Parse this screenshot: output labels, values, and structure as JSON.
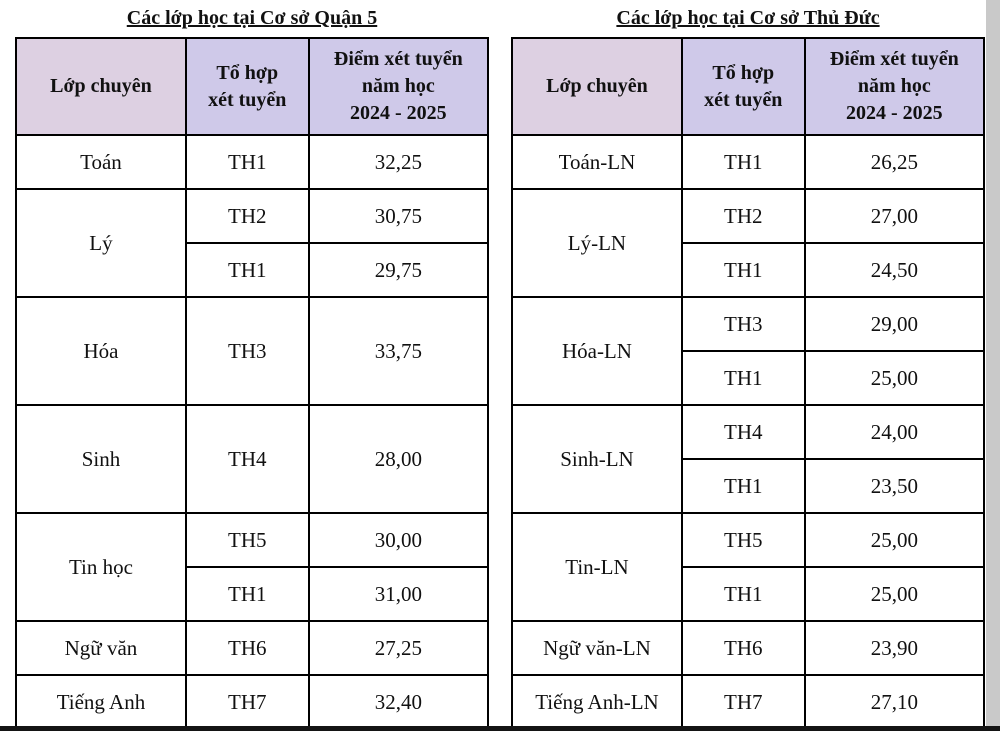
{
  "page": {
    "background": "#ffffff",
    "bottom_edge_color": "#141414",
    "right_strip_color": "#c9c9c9"
  },
  "colors": {
    "header_bg": "#cfc9e9",
    "header_bg_first": "#ddd0e2",
    "border": "#000000"
  },
  "tables": [
    {
      "title": "Các lớp học tại Cơ sở Quận 5",
      "headers": [
        "Lớp chuyên",
        "Tổ hợp\nxét tuyển",
        "Điểm xét tuyển\nnăm học\n2024 - 2025"
      ],
      "groups": [
        {
          "subject": "Toán",
          "rows": [
            {
              "combo": "TH1",
              "score": "32,25"
            }
          ]
        },
        {
          "subject": "Lý",
          "rows": [
            {
              "combo": "TH2",
              "score": "30,75"
            },
            {
              "combo": "TH1",
              "score": "29,75"
            }
          ]
        },
        {
          "subject": "Hóa",
          "rows": [
            {
              "combo": "TH3",
              "score": "33,75",
              "tall": true
            }
          ]
        },
        {
          "subject": "Sinh",
          "rows": [
            {
              "combo": "TH4",
              "score": "28,00",
              "tall": true
            }
          ]
        },
        {
          "subject": "Tin học",
          "rows": [
            {
              "combo": "TH5",
              "score": "30,00"
            },
            {
              "combo": "TH1",
              "score": "31,00"
            }
          ]
        },
        {
          "subject": "Ngữ văn",
          "rows": [
            {
              "combo": "TH6",
              "score": "27,25"
            }
          ]
        },
        {
          "subject": "Tiếng Anh",
          "rows": [
            {
              "combo": "TH7",
              "score": "32,40"
            }
          ]
        }
      ]
    },
    {
      "title": "Các lớp học tại Cơ sở Thủ Đức",
      "headers": [
        "Lớp chuyên",
        "Tổ hợp\nxét tuyển",
        "Điểm xét tuyển\nnăm học\n2024 - 2025"
      ],
      "groups": [
        {
          "subject": "Toán-LN",
          "rows": [
            {
              "combo": "TH1",
              "score": "26,25"
            }
          ]
        },
        {
          "subject": "Lý-LN",
          "rows": [
            {
              "combo": "TH2",
              "score": "27,00"
            },
            {
              "combo": "TH1",
              "score": "24,50"
            }
          ]
        },
        {
          "subject": "Hóa-LN",
          "rows": [
            {
              "combo": "TH3",
              "score": "29,00"
            },
            {
              "combo": "TH1",
              "score": "25,00"
            }
          ]
        },
        {
          "subject": "Sinh-LN",
          "rows": [
            {
              "combo": "TH4",
              "score": "24,00"
            },
            {
              "combo": "TH1",
              "score": "23,50"
            }
          ]
        },
        {
          "subject": "Tin-LN",
          "rows": [
            {
              "combo": "TH5",
              "score": "25,00"
            },
            {
              "combo": "TH1",
              "score": "25,00"
            }
          ]
        },
        {
          "subject": "Ngữ văn-LN",
          "rows": [
            {
              "combo": "TH6",
              "score": "23,90"
            }
          ]
        },
        {
          "subject": "Tiếng Anh-LN",
          "rows": [
            {
              "combo": "TH7",
              "score": "27,10"
            }
          ]
        }
      ]
    }
  ]
}
